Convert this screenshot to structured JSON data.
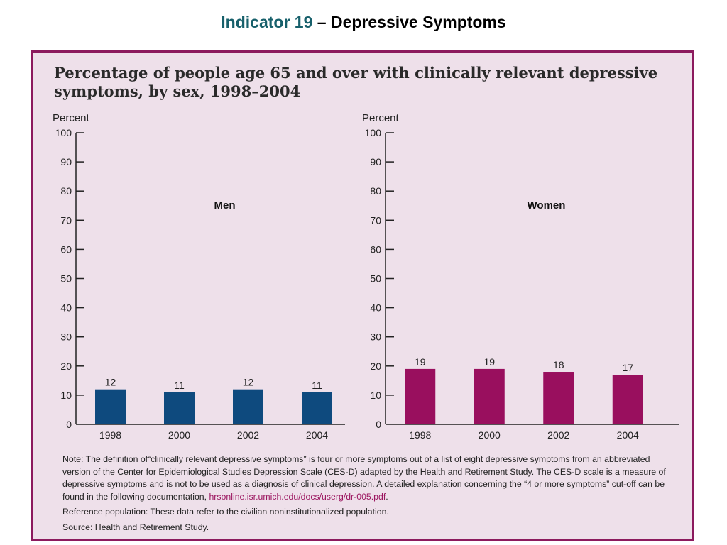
{
  "slide": {
    "title_accent": "Indicator 19",
    "title_rest": " – Depressive Symptoms"
  },
  "colors": {
    "men": "#0e4a7e",
    "women": "#990f5e",
    "panel_bg": "#eee0ea",
    "panel_border": "#8c1a5e",
    "accent": "#17606b"
  },
  "chart_heading": "Percentage of people age 65 and over with clinically relevant depressive symptoms, by sex, 1998–2004",
  "chart_data": [
    {
      "type": "bar",
      "title": "Men",
      "ylabel": "Percent",
      "ylim": [
        0,
        100
      ],
      "yticks": [
        "0",
        "10",
        "20",
        "30",
        "40",
        "50",
        "60",
        "70",
        "80",
        "90",
        "100"
      ],
      "categories": [
        "1998",
        "2000",
        "2002",
        "2004"
      ],
      "values": [
        12,
        11,
        12,
        11
      ],
      "color": "#0e4a7e"
    },
    {
      "type": "bar",
      "title": "Women",
      "ylabel": "Percent",
      "ylim": [
        0,
        100
      ],
      "yticks": [
        "0",
        "10",
        "20",
        "30",
        "40",
        "50",
        "60",
        "70",
        "80",
        "90",
        "100"
      ],
      "categories": [
        "1998",
        "2000",
        "2002",
        "2004"
      ],
      "values": [
        19,
        19,
        18,
        17
      ],
      "color": "#990f5e"
    }
  ],
  "notes": {
    "note_text": "Note: The definition of“clinically relevant depressive symptoms” is four or more symptoms out of a list of eight depressive symptoms from an abbreviated version of the Center for Epidemiological Studies Depression Scale (CES-D) adapted by the Health and Retirement Study. The CES-D scale is a measure of depressive symptoms and is not to be used as a diagnosis of clinical depression. A detailed explanation concerning the “4 or more symptoms” cut-off can be found in the following documentation, ",
    "note_link": "hrsonline.isr.umich.edu/docs/userg/dr-005.pdf",
    "note_end": ".",
    "reference": "Reference population: These data refer to the civilian noninstitutionalized population.",
    "source": "Source: Health and Retirement Study."
  }
}
